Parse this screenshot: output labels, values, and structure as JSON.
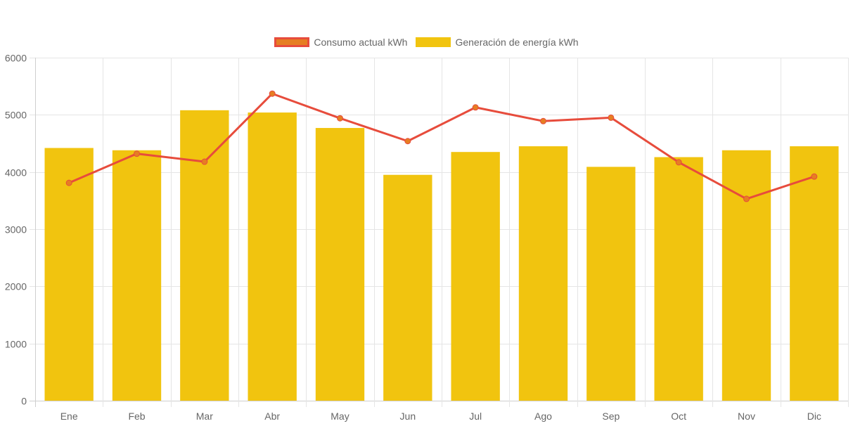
{
  "chart_data": {
    "type": "bar",
    "title": "",
    "xlabel": "",
    "ylabel": "",
    "ylim": [
      0,
      6000
    ],
    "yticks": [
      0,
      1000,
      2000,
      3000,
      4000,
      5000,
      6000
    ],
    "grid": true,
    "legend_position": "top",
    "categories": [
      "Ene",
      "Feb",
      "Mar",
      "Abr",
      "May",
      "Jun",
      "Jul",
      "Ago",
      "Sep",
      "Oct",
      "Nov",
      "Dic"
    ],
    "series": [
      {
        "name": "Consumo actual kWh",
        "type": "line",
        "color": "#e74c3c",
        "point_fill": "#e67e22",
        "values": [
          3810,
          4320,
          4180,
          5370,
          4940,
          4540,
          5130,
          4890,
          4950,
          4170,
          3530,
          3920
        ]
      },
      {
        "name": "Generación de energía kWh",
        "type": "bar",
        "color": "#f1c40f",
        "values": [
          4420,
          4380,
          5080,
          5040,
          4770,
          3950,
          4350,
          4450,
          4090,
          4260,
          4380,
          4450
        ]
      }
    ]
  }
}
